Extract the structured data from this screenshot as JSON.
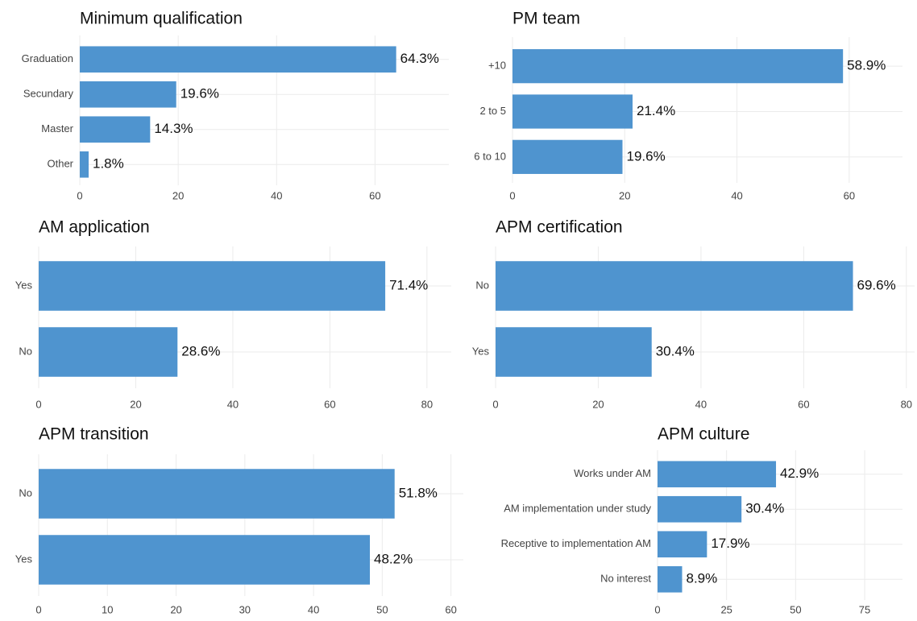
{
  "chart_data": [
    {
      "type": "bar",
      "orientation": "horizontal",
      "title": "Minimum qualification",
      "categories": [
        "Graduation",
        "Secundary",
        "Master",
        "Other"
      ],
      "values": [
        64.3,
        19.6,
        14.3,
        1.8
      ],
      "value_labels": [
        "64.3%",
        "19.6%",
        "14.3%",
        "1.8%"
      ],
      "color": "#4f94cf",
      "xlim": [
        0,
        75
      ],
      "xticks": [
        0,
        20,
        40,
        60
      ],
      "grid": true
    },
    {
      "type": "bar",
      "orientation": "horizontal",
      "title": "PM team",
      "categories": [
        "+10",
        "2 to 5",
        "6 to 10"
      ],
      "values": [
        58.9,
        21.4,
        19.6
      ],
      "value_labels": [
        "58.9%",
        "21.4%",
        "19.6%"
      ],
      "color": "#4f94cf",
      "xlim": [
        0,
        69.5
      ],
      "xticks": [
        0,
        20,
        40,
        60
      ],
      "grid": true
    },
    {
      "type": "bar",
      "orientation": "horizontal",
      "title": "AM application",
      "categories": [
        "Yes",
        "No"
      ],
      "values": [
        71.4,
        28.6
      ],
      "value_labels": [
        "71.4%",
        "28.6%"
      ],
      "color": "#4f94cf",
      "xlim": [
        0,
        85
      ],
      "xticks": [
        0,
        20,
        40,
        60,
        80
      ],
      "grid": true
    },
    {
      "type": "bar",
      "orientation": "horizontal",
      "title": "APM certification",
      "categories": [
        "No",
        "Yes"
      ],
      "values": [
        69.6,
        30.4
      ],
      "value_labels": [
        "69.6%",
        "30.4%"
      ],
      "color": "#4f94cf",
      "xlim": [
        0,
        81.6
      ],
      "xticks": [
        0,
        20,
        40,
        60,
        80
      ],
      "grid": true
    },
    {
      "type": "bar",
      "orientation": "horizontal",
      "title": "APM transition",
      "categories": [
        "No",
        "Yes"
      ],
      "values": [
        51.8,
        48.2
      ],
      "value_labels": [
        "51.8%",
        "48.2%"
      ],
      "color": "#4f94cf",
      "xlim": [
        0,
        61.8
      ],
      "xticks": [
        0,
        10,
        20,
        30,
        40,
        50,
        60
      ],
      "grid": true
    },
    {
      "type": "bar",
      "orientation": "horizontal",
      "title": "APM culture",
      "categories": [
        "Works under AM",
        "AM implementation under study",
        "Receptive to implementation AM",
        "No interest"
      ],
      "values": [
        42.9,
        30.4,
        17.9,
        8.9
      ],
      "value_labels": [
        "42.9%",
        "30.4%",
        "17.9%",
        "8.9%"
      ],
      "color": "#4f94cf",
      "xlim": [
        0,
        88.7
      ],
      "xticks": [
        0,
        25,
        50,
        75
      ],
      "grid": true
    }
  ]
}
